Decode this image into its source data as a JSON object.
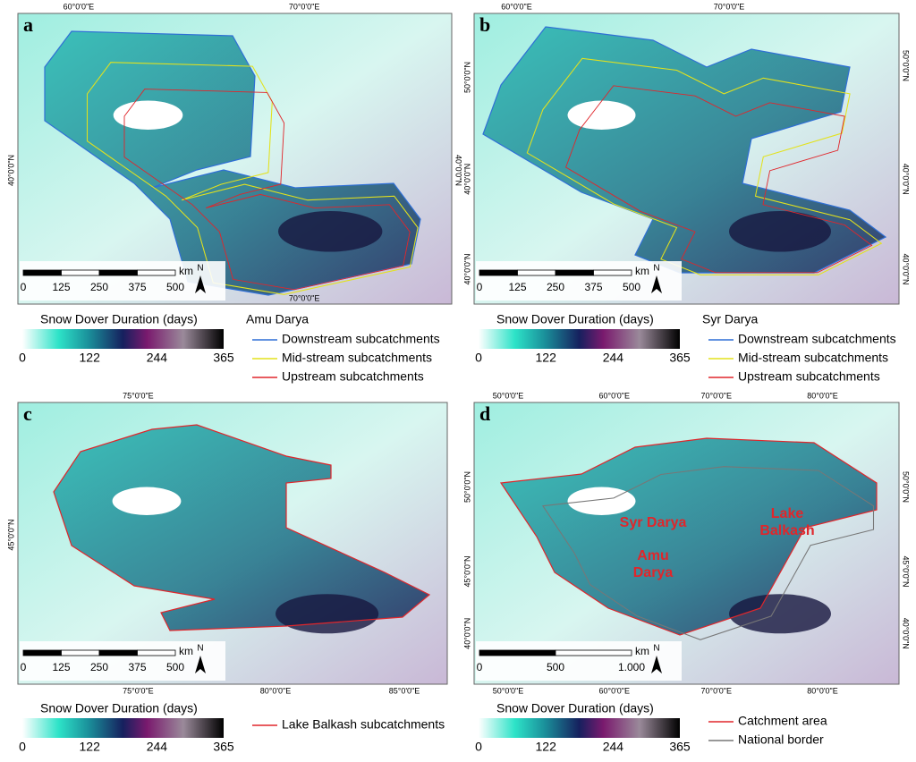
{
  "panels": [
    {
      "label": "a",
      "graticule": {
        "top": [
          "60°0'0\"E",
          "70°0'0\"E"
        ],
        "bottom": [
          "70°0'0\"E"
        ],
        "left": [
          "40°0'0\"N"
        ],
        "right": [
          "40°0'0\"N"
        ]
      },
      "scale_bar": {
        "ticks": [
          "0",
          "125",
          "250",
          "375",
          "500"
        ],
        "unit": "km"
      },
      "north": "N",
      "colorbar": {
        "title": "Snow Dover Duration (days)",
        "ticks": [
          0,
          122,
          244,
          365
        ]
      },
      "legend": {
        "title": "Amu Darya",
        "entries": [
          {
            "label": "Downstream subcatchments",
            "color": "#2f6fd6"
          },
          {
            "label": "Mid-stream subcatchments",
            "color": "#e3e21c"
          },
          {
            "label": "Upstream subcatchments",
            "color": "#e0262b"
          }
        ]
      }
    },
    {
      "label": "b",
      "graticule": {
        "top": [
          "60°0'0\"E",
          "70°0'0\"E"
        ],
        "bottom": [],
        "left": [
          "50°0'0\"N",
          "40°0'0\"N",
          "40°0'0\"N"
        ],
        "right": [
          "50°0'0\"N",
          "40°0'0\"N",
          "40°0'0\"N"
        ]
      },
      "scale_bar": {
        "ticks": [
          "0",
          "125",
          "250",
          "375",
          "500"
        ],
        "unit": "km"
      },
      "north": "N",
      "colorbar": {
        "title": "Snow Dover Duration (days)",
        "ticks": [
          0,
          122,
          244,
          365
        ]
      },
      "legend": {
        "title": "Syr Darya",
        "entries": [
          {
            "label": "Downstream subcatchments",
            "color": "#2f6fd6"
          },
          {
            "label": "Mid-stream subcatchments",
            "color": "#e3e21c"
          },
          {
            "label": "Upstream subcatchments",
            "color": "#e0262b"
          }
        ]
      }
    },
    {
      "label": "c",
      "graticule": {
        "top": [
          "75°0'0\"E"
        ],
        "bottom": [
          "75°0'0\"E",
          "80°0'0\"E",
          "85°0'0\"E"
        ],
        "left": [
          "45°0'0\"N"
        ],
        "right": []
      },
      "scale_bar": {
        "ticks": [
          "0",
          "125",
          "250",
          "375",
          "500"
        ],
        "unit": "km"
      },
      "north": "N",
      "colorbar": {
        "title": "Snow Dover Duration (days)",
        "ticks": [
          0,
          122,
          244,
          365
        ]
      },
      "legend": {
        "entries": [
          {
            "label": "Lake Balkash subcatchments",
            "color": "#e0262b"
          }
        ]
      }
    },
    {
      "label": "d",
      "graticule": {
        "top": [
          "50°0'0\"E",
          "60°0'0\"E",
          "70°0'0\"E",
          "80°0'0\"E"
        ],
        "bottom": [
          "50°0'0\"E",
          "60°0'0\"E",
          "70°0'0\"E",
          "80°0'0\"E"
        ],
        "left": [
          "50°0'0\"N",
          "45°0'0\"N",
          "40°0'0\"N"
        ],
        "right": [
          "50°0'0\"N",
          "45°0'0\"N",
          "40°0'0\"N"
        ]
      },
      "scale_bar": {
        "ticks": [
          "0",
          "500",
          "1.000"
        ],
        "unit": "km"
      },
      "north": "N",
      "catchment_labels": [
        [
          "Syr Darya"
        ],
        [
          "Lake",
          "Balkash"
        ],
        [
          "Amu",
          "Darya"
        ]
      ],
      "colorbar": {
        "title": "Snow Dover Duration (days)",
        "ticks": [
          0,
          122,
          244,
          365
        ]
      },
      "legend": {
        "entries": [
          {
            "label": "Catchment area",
            "color": "#e0262b"
          },
          {
            "label": "National border",
            "color": "#777777"
          }
        ]
      }
    }
  ]
}
